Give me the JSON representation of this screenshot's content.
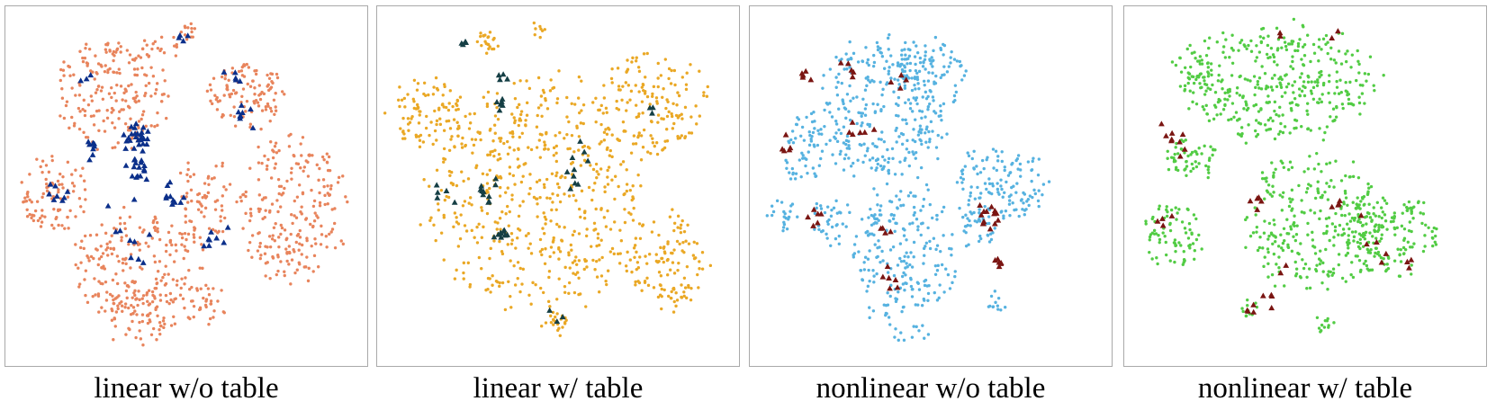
{
  "chart_data": [
    {
      "type": "scatter",
      "caption": "linear w/o table",
      "point_color": "#e8845c",
      "marker_color": "#0b2f8a",
      "grid": false,
      "axes_visible": false
    },
    {
      "type": "scatter",
      "caption": "linear w/ table",
      "point_color": "#eaa825",
      "marker_color": "#153f45",
      "grid": false,
      "axes_visible": false
    },
    {
      "type": "scatter",
      "caption": "nonlinear w/o table",
      "point_color": "#56b2e0",
      "marker_color": "#7a1512",
      "grid": false,
      "axes_visible": false
    },
    {
      "type": "scatter",
      "caption": "nonlinear w/ table",
      "point_color": "#52cc44",
      "marker_color": "#7a1512",
      "grid": false,
      "axes_visible": false
    }
  ]
}
